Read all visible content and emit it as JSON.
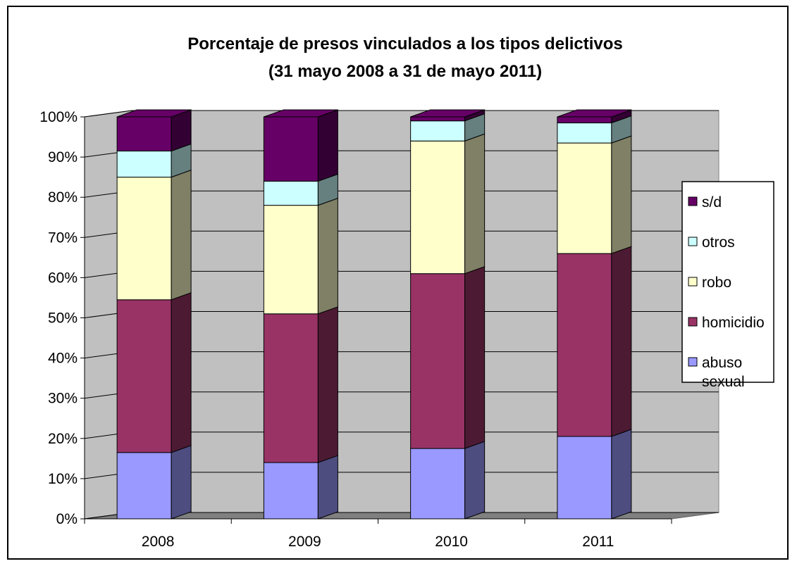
{
  "chart_data": {
    "type": "bar",
    "stacked": true,
    "percent_stacked": true,
    "three_d": true,
    "title": "Porcentaje de presos vinculados a los tipos delictivos",
    "subtitle": "(31 mayo 2008 a 31 de mayo 2011)",
    "categories": [
      "2008",
      "2009",
      "2010",
      "2011"
    ],
    "ylim": [
      0,
      100
    ],
    "y_ticks": [
      "0%",
      "10%",
      "20%",
      "30%",
      "40%",
      "50%",
      "60%",
      "70%",
      "80%",
      "90%",
      "100%"
    ],
    "grid": true,
    "legend_position": "right",
    "series": [
      {
        "name": "abuso sexual",
        "values": [
          16.5,
          14,
          17.5,
          20.5
        ],
        "color": "#9999ff",
        "side_color": "#4d4d80"
      },
      {
        "name": "homicidio",
        "values": [
          38,
          37,
          43.5,
          45.5
        ],
        "color": "#993366",
        "side_color": "#4d1a33"
      },
      {
        "name": "robo",
        "values": [
          30.5,
          27,
          33,
          27.5
        ],
        "color": "#ffffcc",
        "side_color": "#808066"
      },
      {
        "name": "otros",
        "values": [
          6.5,
          6,
          5,
          5
        ],
        "color": "#ccffff",
        "side_color": "#668080"
      },
      {
        "name": "s/d",
        "values": [
          8.5,
          16,
          1,
          1.5
        ],
        "color": "#660066",
        "side_color": "#330033"
      }
    ],
    "legend_order": [
      "s/d",
      "otros",
      "robo",
      "homicidio",
      "abuso sexual"
    ],
    "legend_labels": [
      [
        "s/d"
      ],
      [
        "otros"
      ],
      [
        "robo"
      ],
      [
        "homicidio"
      ],
      [
        "abuso",
        "sexual"
      ]
    ]
  }
}
